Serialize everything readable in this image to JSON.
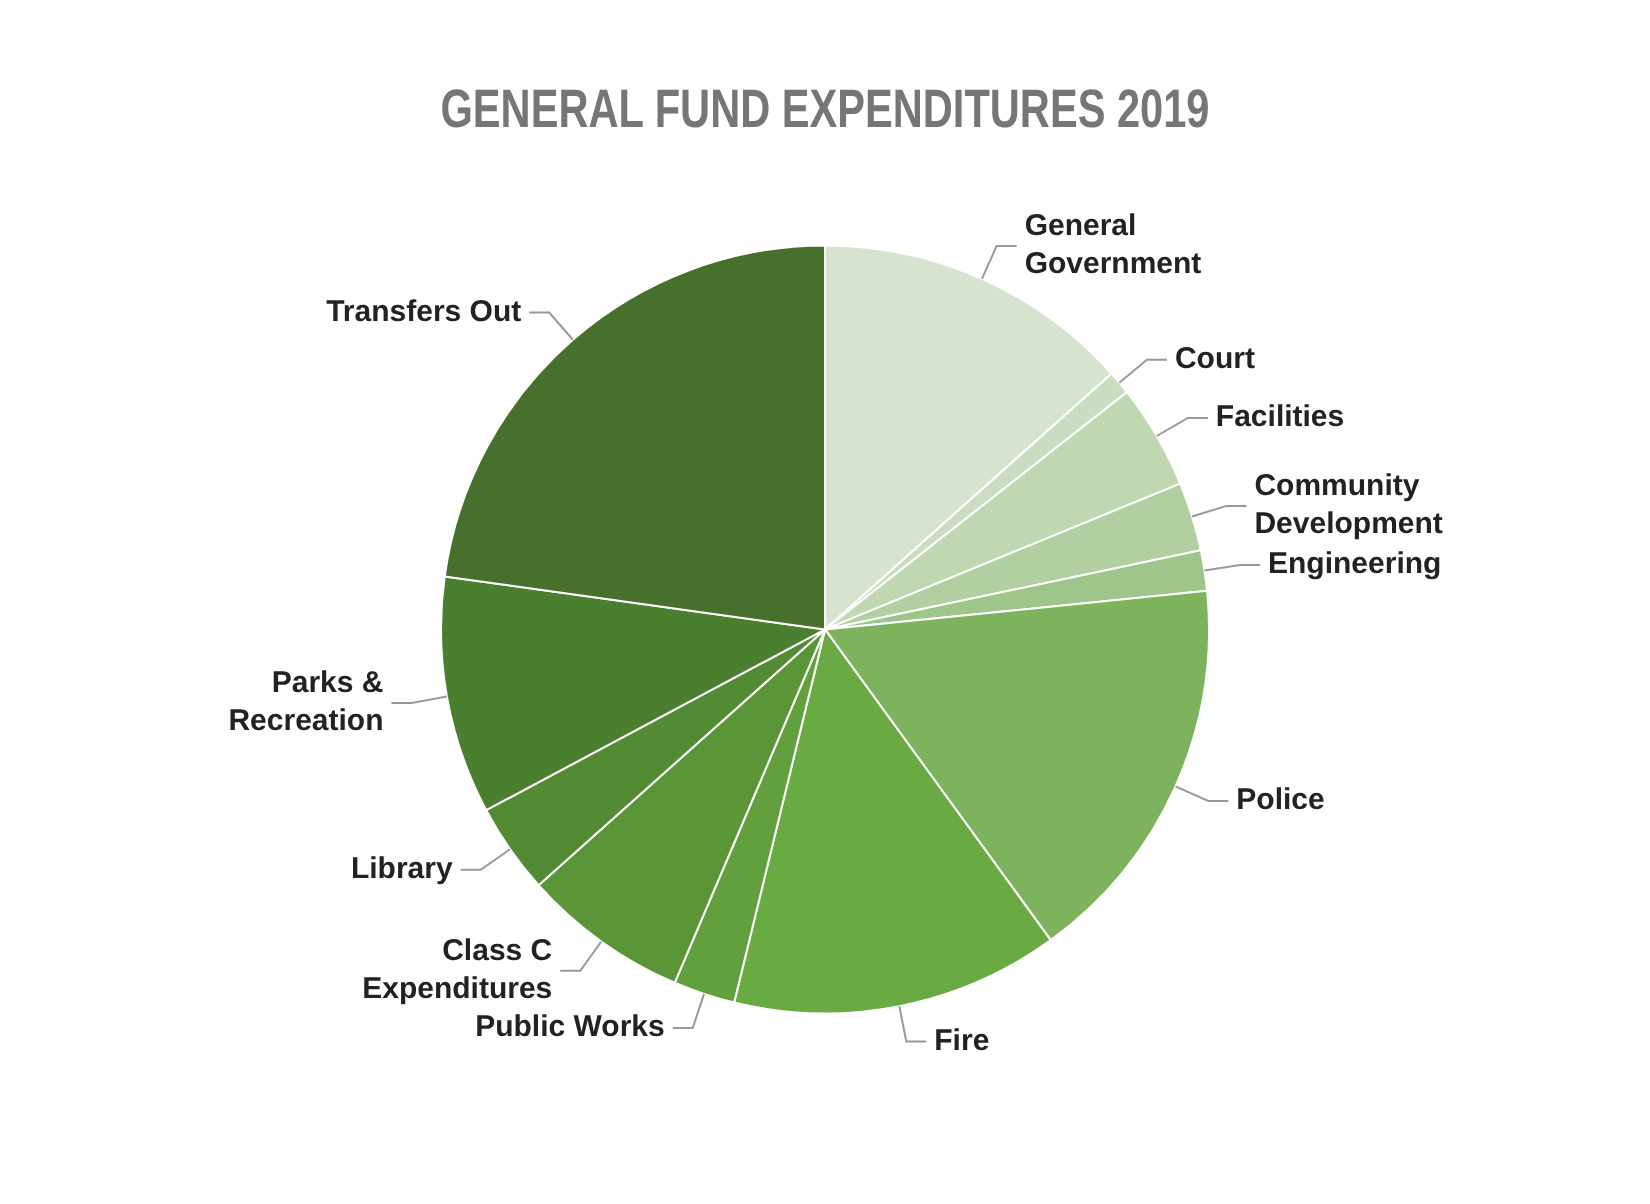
{
  "chart_data": {
    "type": "pie",
    "title": "GENERAL FUND EXPENDITURES 2019",
    "categories": [
      "General Government",
      "Court",
      "Facilities",
      "Community Development",
      "Engineering",
      "Police",
      "Fire",
      "Public Works",
      "Class C Expenditures",
      "Library",
      "Parks & Recreation",
      "Transfers Out"
    ],
    "values": [
      13.4,
      1,
      4.4,
      2.9,
      1.7,
      16.6,
      13.8,
      2.6,
      7,
      3.8,
      10,
      22.8
    ],
    "colors": [
      "#d6e4cf",
      "#c9ddc0",
      "#bfd8b2",
      "#b1cfa0",
      "#9fc68a",
      "#7db35c",
      "#6aaa42",
      "#62a03d",
      "#5a9637",
      "#528b33",
      "#4a7f2f",
      "#46702b"
    ],
    "legend": false
  }
}
